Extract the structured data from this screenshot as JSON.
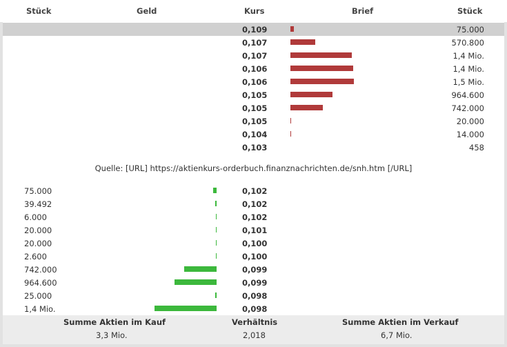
{
  "header": {
    "col_stueck_left": "Stück",
    "col_geld": "Geld",
    "col_kurs": "Kurs",
    "col_brief": "Brief",
    "col_stueck_right": "Stück"
  },
  "asks": [
    {
      "kurs": "0,109",
      "stueck": "75.000",
      "fill": 0.05
    },
    {
      "kurs": "0,107",
      "stueck": "570.800",
      "fill": 0.39
    },
    {
      "kurs": "0,107",
      "stueck": "1,4 Mio.",
      "fill": 0.97
    },
    {
      "kurs": "0,106",
      "stueck": "1,4 Mio.",
      "fill": 0.99
    },
    {
      "kurs": "0,106",
      "stueck": "1,5 Mio.",
      "fill": 1.0
    },
    {
      "kurs": "0,105",
      "stueck": "964.600",
      "fill": 0.66
    },
    {
      "kurs": "0,105",
      "stueck": "742.000",
      "fill": 0.51
    },
    {
      "kurs": "0,105",
      "stueck": "20.000",
      "fill": 0.01
    },
    {
      "kurs": "0,104",
      "stueck": "14.000",
      "fill": 0.01
    },
    {
      "kurs": "0,103",
      "stueck": "458",
      "fill": 0.0
    }
  ],
  "source": "Quelle: [URL] https://aktienkurs-orderbuch.finanznachrichten.de/snh.htm [/URL]",
  "bids": [
    {
      "stueck": "75.000",
      "kurs": "0,102",
      "fill": 0.05
    },
    {
      "stueck": "39.492",
      "kurs": "0,102",
      "fill": 0.02
    },
    {
      "stueck": "6.000",
      "kurs": "0,102",
      "fill": 0.01
    },
    {
      "stueck": "20.000",
      "kurs": "0,101",
      "fill": 0.01
    },
    {
      "stueck": "20.000",
      "kurs": "0,100",
      "fill": 0.01
    },
    {
      "stueck": "2.600",
      "kurs": "0,100",
      "fill": 0.005
    },
    {
      "stueck": "742.000",
      "kurs": "0,099",
      "fill": 0.52
    },
    {
      "stueck": "964.600",
      "kurs": "0,099",
      "fill": 0.68
    },
    {
      "stueck": "25.000",
      "kurs": "0,098",
      "fill": 0.02
    },
    {
      "stueck": "1,4 Mio.",
      "kurs": "0,098",
      "fill": 1.0
    }
  ],
  "footer": {
    "kauf_label": "Summe Aktien im Kauf",
    "kauf_value": "3,3 Mio.",
    "ratio_label": "Verhältnis",
    "ratio_value": "2,018",
    "verkauf_label": "Summe Aktien im Verkauf",
    "verkauf_value": "6,7 Mio."
  },
  "colors": {
    "ask_bar": "#b03a3a",
    "bid_bar": "#3cb83c",
    "highlight": "#d0d0d0"
  }
}
